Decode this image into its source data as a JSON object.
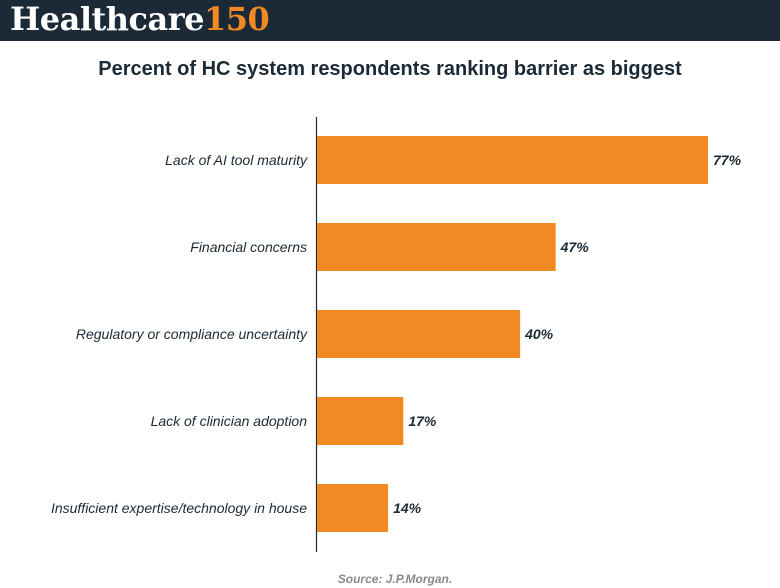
{
  "brand": {
    "word": "Healthcare",
    "number": "150"
  },
  "source": "Source: J.P.Morgan.",
  "colors": {
    "header_bg": "#1b2a36",
    "accent": "#f28a24",
    "bar": "#f28a24",
    "text": "#1b2a36"
  },
  "chart_data": {
    "type": "bar",
    "orientation": "horizontal",
    "title": "Percent of HC system respondents ranking barrier as biggest",
    "categories": [
      "Lack of AI tool maturity",
      "Financial concerns",
      "Regulatory or compliance uncertainty",
      "Lack of clinician adoption",
      "Insufficient expertise/technology in house"
    ],
    "values": [
      77,
      47,
      40,
      17,
      14
    ],
    "value_labels": [
      "77%",
      "47%",
      "40%",
      "17%",
      "14%"
    ],
    "xlim": [
      0,
      100
    ],
    "xlabel": "",
    "ylabel": "",
    "grid": false,
    "legend": "none"
  }
}
